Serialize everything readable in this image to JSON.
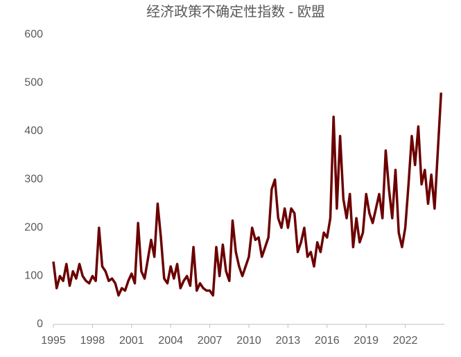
{
  "chart_data": {
    "type": "line",
    "title": "经济政策不确定性指数 - 欧盟",
    "x": [
      1995,
      1995.25,
      1995.5,
      1995.75,
      1996,
      1996.25,
      1996.5,
      1996.75,
      1997,
      1997.25,
      1997.5,
      1997.75,
      1998,
      1998.25,
      1998.5,
      1998.75,
      1999,
      1999.25,
      1999.5,
      1999.75,
      2000,
      2000.25,
      2000.5,
      2000.75,
      2001,
      2001.25,
      2001.5,
      2001.75,
      2002,
      2002.25,
      2002.5,
      2002.75,
      2003,
      2003.25,
      2003.5,
      2003.75,
      2004,
      2004.25,
      2004.5,
      2004.75,
      2005,
      2005.25,
      2005.5,
      2005.75,
      2006,
      2006.25,
      2006.5,
      2006.75,
      2007,
      2007.25,
      2007.5,
      2007.75,
      2008,
      2008.25,
      2008.5,
      2008.75,
      2009,
      2009.25,
      2009.5,
      2009.75,
      2010,
      2010.25,
      2010.5,
      2010.75,
      2011,
      2011.25,
      2011.5,
      2011.75,
      2012,
      2012.25,
      2012.5,
      2012.75,
      2013,
      2013.25,
      2013.5,
      2013.75,
      2014,
      2014.25,
      2014.5,
      2014.75,
      2015,
      2015.25,
      2015.5,
      2015.75,
      2016,
      2016.25,
      2016.5,
      2016.75,
      2017,
      2017.25,
      2017.5,
      2017.75,
      2018,
      2018.25,
      2018.5,
      2018.75,
      2019,
      2019.25,
      2019.5,
      2019.75,
      2020,
      2020.25,
      2020.5,
      2020.75,
      2021,
      2021.25,
      2021.5,
      2021.75,
      2022,
      2022.25,
      2022.5,
      2022.75,
      2023,
      2023.25,
      2023.5,
      2023.75,
      2024,
      2024.25,
      2024.5,
      2024.75
    ],
    "series": [
      {
        "color": "#6b0000",
        "values": [
          130,
          75,
          100,
          90,
          125,
          80,
          110,
          95,
          125,
          100,
          90,
          85,
          100,
          90,
          200,
          120,
          110,
          90,
          95,
          85,
          60,
          75,
          70,
          90,
          105,
          85,
          210,
          110,
          95,
          135,
          175,
          140,
          250,
          180,
          95,
          85,
          120,
          95,
          125,
          75,
          90,
          100,
          80,
          160,
          70,
          85,
          75,
          70,
          70,
          60,
          160,
          100,
          165,
          110,
          90,
          215,
          150,
          120,
          100,
          120,
          140,
          200,
          175,
          180,
          140,
          160,
          180,
          280,
          300,
          220,
          200,
          240,
          200,
          240,
          230,
          150,
          170,
          200,
          140,
          150,
          120,
          170,
          150,
          190,
          180,
          220,
          430,
          240,
          390,
          260,
          220,
          270,
          160,
          220,
          170,
          190,
          270,
          230,
          210,
          240,
          270,
          220,
          360,
          280,
          220,
          320,
          190,
          160,
          200,
          290,
          390,
          330,
          410,
          290,
          320,
          250,
          310,
          240,
          360,
          480
        ]
      }
    ],
    "xlim": [
      1995,
      2025
    ],
    "xticks": [
      1995,
      1998,
      2001,
      2004,
      2007,
      2010,
      2013,
      2016,
      2019,
      2022
    ],
    "ylim": [
      0,
      600
    ],
    "yticks": [
      0,
      100,
      200,
      300,
      400,
      500,
      600
    ]
  }
}
